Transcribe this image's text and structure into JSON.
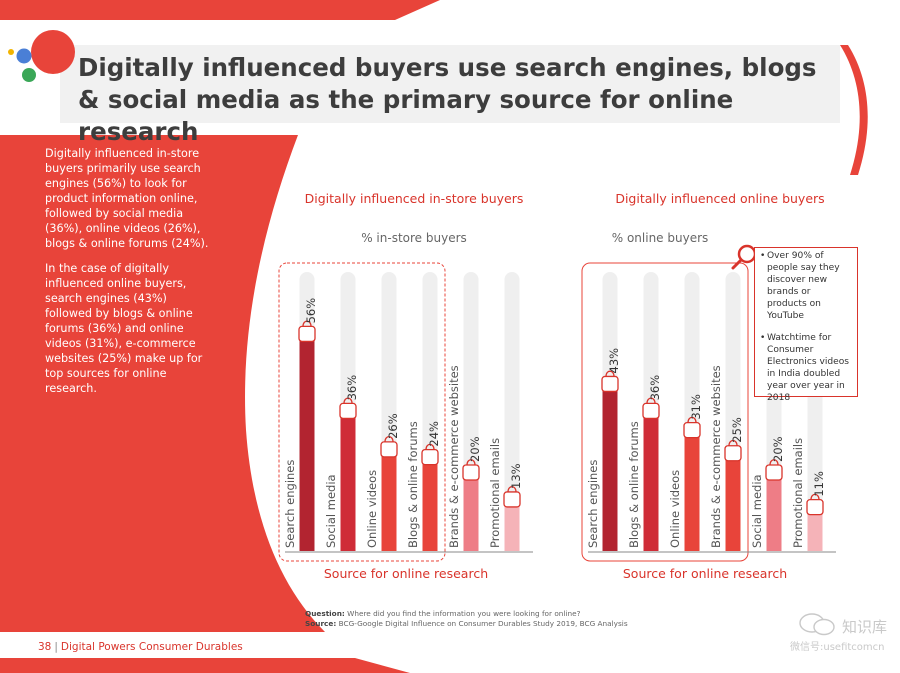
{
  "title": "Digitally influenced buyers use search engines, blogs & social media as the primary source for online research",
  "intro": [
    "Digitally influenced in-store buyers primarily use search engines (56%) to look for product information online, followed by social media (36%), online videos (26%), blogs & online forums (24%).",
    "In the case of digitally influenced online buyers, search engines (43%) followed by blogs & online forums (36%) and online videos (31%), e-commerce websites (25%) make up for top sources for online research."
  ],
  "note_box": [
    "Over 90% of people say they discover new brands or products on YouTube",
    "Watchtime for Consumer Electronics videos in India doubled year over year in 2018"
  ],
  "footnote": {
    "question_label": "Question:",
    "question": "Where did you find the information you were looking for online?",
    "source_label": "Source:",
    "source": "BCG-Google Digital Influence on Consumer Durables Study 2019, BCG Analysis"
  },
  "footer": {
    "page": "38",
    "separator": "|",
    "text": "Digital Powers Consumer Durables"
  },
  "watermark": {
    "name": "知识库",
    "id": "微信号:usefitcomcn"
  },
  "colors": {
    "accent": "#e8443a",
    "dark_red": "#b22430",
    "mid_red": "#cf2c37",
    "red": "#e8443a",
    "pink": "#ee7d86",
    "light_pink": "#f5b3b8",
    "track": "#efefef"
  },
  "chart_data": [
    {
      "type": "bar",
      "title": "Digitally influenced in-store buyers",
      "subtitle": "% in-store buyers",
      "xlabel": "Source for online research",
      "ylim": [
        0,
        100
      ],
      "categories": [
        "Search engines",
        "Social media",
        "Online videos",
        "Blogs & online forums",
        "Brands & e-commerce websites",
        "Promotional emails"
      ],
      "values": [
        56,
        36,
        26,
        24,
        20,
        13
      ],
      "value_labels": [
        "56%",
        "36%",
        "26%",
        "24%",
        "20%",
        "13%"
      ],
      "highlighted": [
        "Search engines",
        "Social media",
        "Online videos",
        "Blogs & online forums"
      ]
    },
    {
      "type": "bar",
      "title": "Digitally influenced online buyers",
      "subtitle": "% online buyers",
      "xlabel": "Source for online research",
      "ylim": [
        0,
        100
      ],
      "categories": [
        "Search engines",
        "Blogs & online forums",
        "Online videos",
        "Brands & e-commerce websites",
        "Social media",
        "Promotional emails"
      ],
      "values": [
        43,
        36,
        31,
        25,
        20,
        11
      ],
      "value_labels": [
        "43%",
        "36%",
        "31%",
        "25%",
        "20%",
        "11%"
      ],
      "highlighted": [
        "Search engines",
        "Blogs & online forums",
        "Online videos",
        "Brands & e-commerce websites"
      ]
    }
  ]
}
